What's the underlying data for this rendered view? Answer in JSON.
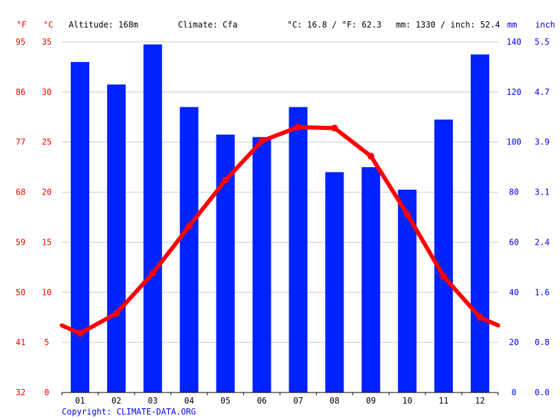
{
  "header": {
    "unit_f": "°F",
    "unit_c": "°C",
    "altitude": "Altitude: 168m",
    "climate": "Climate: Cfa",
    "temp_summary": "°C: 16.8 / °F: 62.3",
    "precip_summary": "mm: 1330 / inch: 52.4",
    "unit_mm": "mm",
    "unit_inch": "inch"
  },
  "copyright": "Copyright: CLIMATE-DATA.ORG",
  "colors": {
    "temperature": "#ff0000",
    "precipitation": "#0022ff"
  },
  "chart_data": {
    "type": "bar",
    "categories": [
      "01",
      "02",
      "03",
      "04",
      "05",
      "06",
      "07",
      "08",
      "09",
      "10",
      "11",
      "12"
    ],
    "series": [
      {
        "type": "bar",
        "axis": "right-mm",
        "values": [
          132,
          123,
          139,
          114,
          103,
          102,
          114,
          88,
          90,
          81,
          109,
          135
        ]
      },
      {
        "type": "line",
        "axis": "left-c",
        "values": [
          5.9,
          7.9,
          11.9,
          16.6,
          21.2,
          25.1,
          26.5,
          26.4,
          23.6,
          17.8,
          11.6,
          7.5
        ]
      }
    ],
    "axes": {
      "f_ticks": [
        "95",
        "86",
        "77",
        "68",
        "59",
        "50",
        "41",
        "32"
      ],
      "c_ticks": [
        "35",
        "30",
        "25",
        "20",
        "15",
        "10",
        "5",
        "0"
      ],
      "mm_ticks": [
        "140",
        "120",
        "100",
        "80",
        "60",
        "40",
        "20",
        "0"
      ],
      "inch_ticks": [
        "5.5",
        "4.7",
        "3.9",
        "3.1",
        "2.4",
        "1.6",
        "0.8",
        "0.0"
      ],
      "c_range": [
        0,
        35
      ],
      "mm_range": [
        0,
        140
      ]
    },
    "grid": true
  }
}
